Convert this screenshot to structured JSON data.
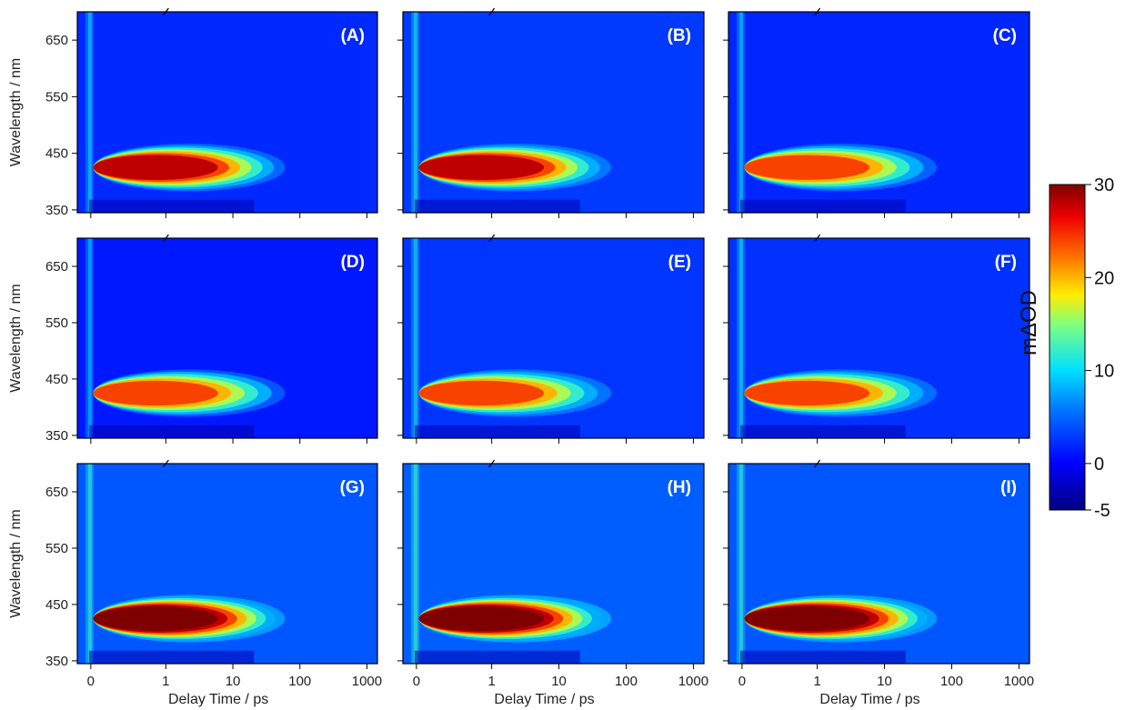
{
  "chart_data": {
    "type": "heatmap",
    "panels": [
      {
        "label": "(A)",
        "peak": 28,
        "bg": 2.0
      },
      {
        "label": "(B)",
        "peak": 29,
        "bg": 2.8
      },
      {
        "label": "(C)",
        "peak": 27,
        "bg": 1.8
      },
      {
        "label": "(D)",
        "peak": 27,
        "bg": 1.2
      },
      {
        "label": "(E)",
        "peak": 26,
        "bg": 2.6
      },
      {
        "label": "(F)",
        "peak": 27,
        "bg": 2.4
      },
      {
        "label": "(G)",
        "peak": 30,
        "bg": 4.2
      },
      {
        "label": "(H)",
        "peak": 30,
        "bg": 4.6
      },
      {
        "label": "(I)",
        "peak": 30,
        "bg": 4.2
      }
    ],
    "xlabel": "Delay Time / ps",
    "ylabel": "Wavelength / nm",
    "x_ticks": [
      "0",
      "1",
      "10",
      "100",
      "1000"
    ],
    "y_ticks": [
      "350",
      "450",
      "550",
      "650"
    ],
    "ylim": [
      345,
      700
    ],
    "x_scale": "linear below 1 ps, log above 1 ps (axis break at 1 ps)",
    "colorbar": {
      "title": "mΔOD",
      "ticks": [
        "30",
        "20",
        "10",
        "0",
        "-5"
      ],
      "range": [
        -5,
        30
      ],
      "colormap": "jet"
    }
  }
}
